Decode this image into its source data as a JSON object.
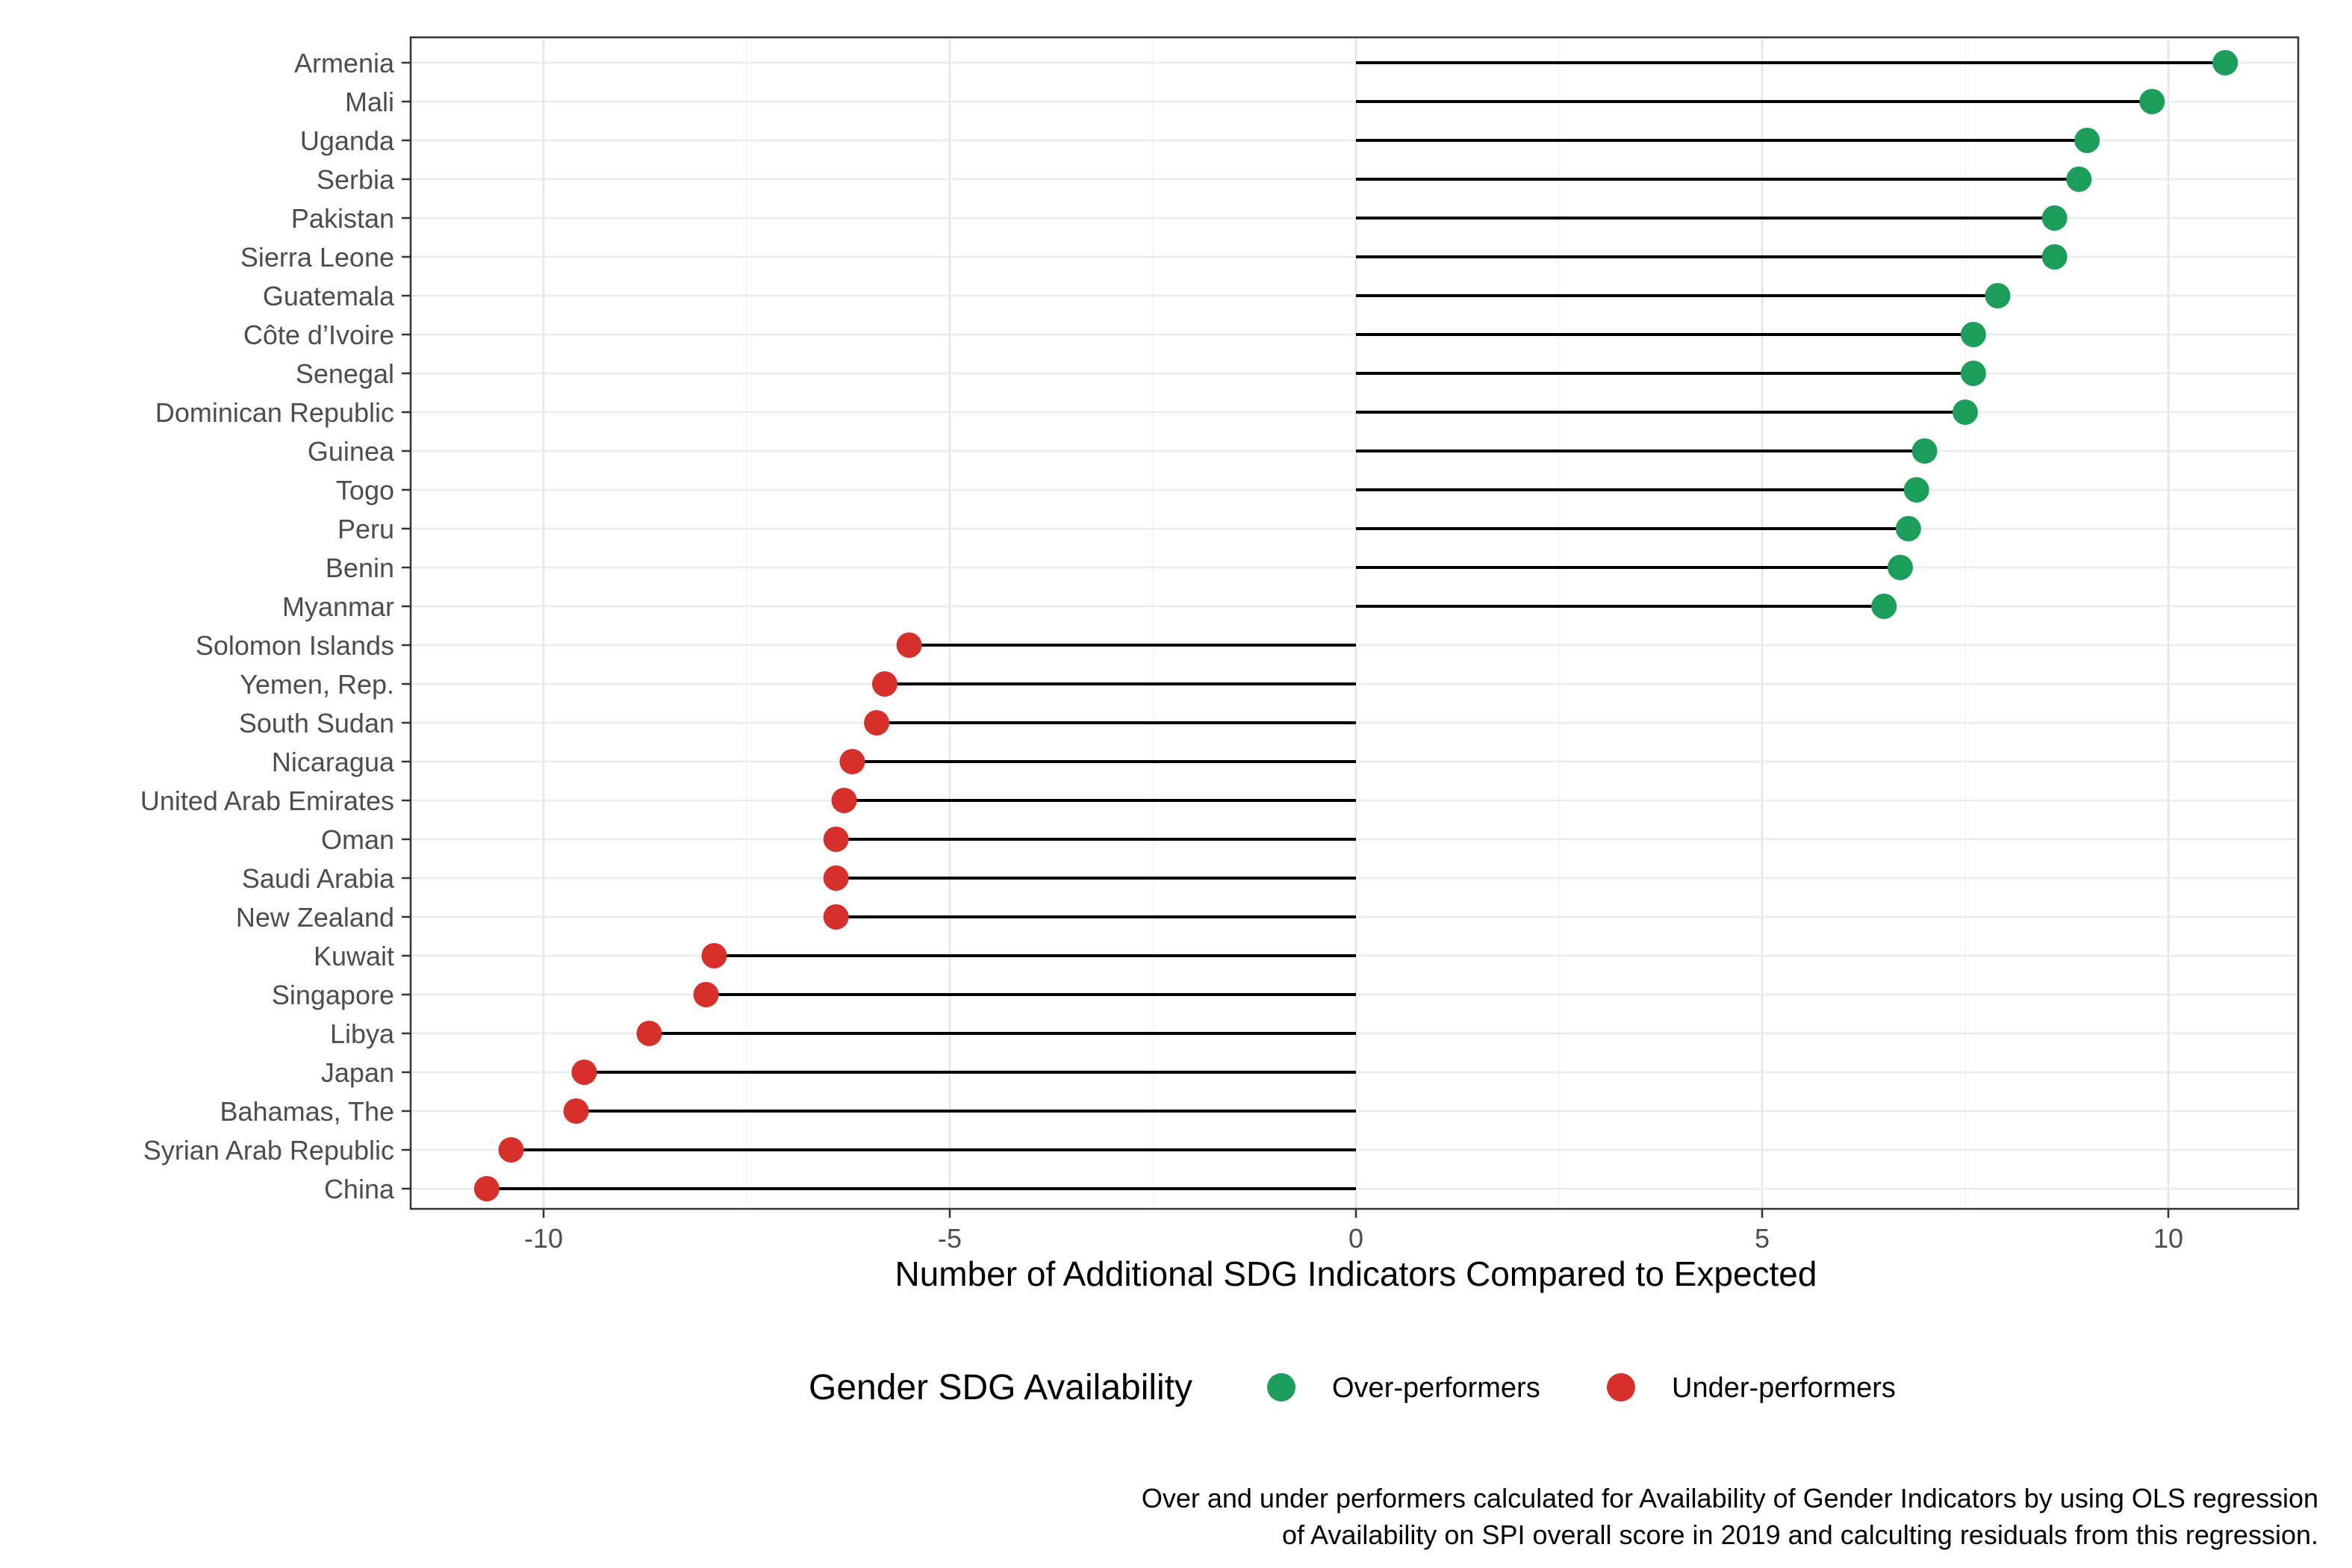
{
  "chart_data": {
    "type": "lollipop",
    "xlabel": "Number of Additional SDG Indicators Compared to Expected",
    "xlim": [
      -11.8,
      11.8
    ],
    "xticks": [
      -10,
      -5,
      0,
      5,
      10
    ],
    "grid": true,
    "legend": {
      "title": "Gender SDG Availability",
      "position": "bottom",
      "entries": [
        {
          "label": "Over-performers",
          "color": "#1b9e5a"
        },
        {
          "label": "Under-performers",
          "color": "#d7302a"
        }
      ]
    },
    "caption": [
      "Over and under performers calculated for Availability of Gender Indicators by using OLS regression",
      "of Availability on SPI overall score in 2019 and calculting residuals from this regression."
    ],
    "points": [
      {
        "country": "Armenia",
        "value": 10.7,
        "group": "Over-performers"
      },
      {
        "country": "Mali",
        "value": 9.8,
        "group": "Over-performers"
      },
      {
        "country": "Uganda",
        "value": 9.0,
        "group": "Over-performers"
      },
      {
        "country": "Serbia",
        "value": 8.9,
        "group": "Over-performers"
      },
      {
        "country": "Pakistan",
        "value": 8.6,
        "group": "Over-performers"
      },
      {
        "country": "Sierra Leone",
        "value": 8.6,
        "group": "Over-performers"
      },
      {
        "country": "Guatemala",
        "value": 7.9,
        "group": "Over-performers"
      },
      {
        "country": "Côte d’Ivoire",
        "value": 7.6,
        "group": "Over-performers"
      },
      {
        "country": "Senegal",
        "value": 7.6,
        "group": "Over-performers"
      },
      {
        "country": "Dominican Republic",
        "value": 7.5,
        "group": "Over-performers"
      },
      {
        "country": "Guinea",
        "value": 7.0,
        "group": "Over-performers"
      },
      {
        "country": "Togo",
        "value": 6.9,
        "group": "Over-performers"
      },
      {
        "country": "Peru",
        "value": 6.8,
        "group": "Over-performers"
      },
      {
        "country": "Benin",
        "value": 6.7,
        "group": "Over-performers"
      },
      {
        "country": "Myanmar",
        "value": 6.5,
        "group": "Over-performers"
      },
      {
        "country": "Solomon Islands",
        "value": -5.5,
        "group": "Under-performers"
      },
      {
        "country": "Yemen, Rep.",
        "value": -5.8,
        "group": "Under-performers"
      },
      {
        "country": "South Sudan",
        "value": -5.9,
        "group": "Under-performers"
      },
      {
        "country": "Nicaragua",
        "value": -6.2,
        "group": "Under-performers"
      },
      {
        "country": "United Arab Emirates",
        "value": -6.3,
        "group": "Under-performers"
      },
      {
        "country": "Oman",
        "value": -6.4,
        "group": "Under-performers"
      },
      {
        "country": "Saudi Arabia",
        "value": -6.4,
        "group": "Under-performers"
      },
      {
        "country": "New Zealand",
        "value": -6.4,
        "group": "Under-performers"
      },
      {
        "country": "Kuwait",
        "value": -7.9,
        "group": "Under-performers"
      },
      {
        "country": "Singapore",
        "value": -8.0,
        "group": "Under-performers"
      },
      {
        "country": "Libya",
        "value": -8.7,
        "group": "Under-performers"
      },
      {
        "country": "Japan",
        "value": -9.5,
        "group": "Under-performers"
      },
      {
        "country": "Bahamas, The",
        "value": -9.6,
        "group": "Under-performers"
      },
      {
        "country": "Syrian Arab Republic",
        "value": -10.4,
        "group": "Under-performers"
      },
      {
        "country": "China",
        "value": -10.7,
        "group": "Under-performers"
      }
    ]
  }
}
